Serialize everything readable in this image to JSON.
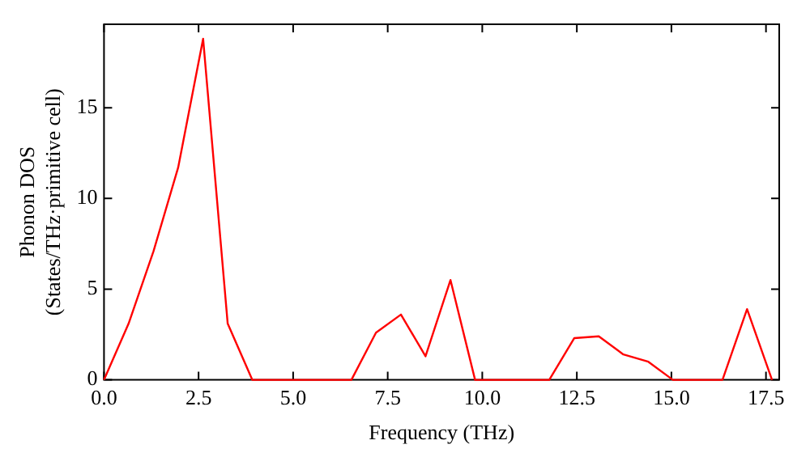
{
  "chart_data": {
    "type": "line",
    "xlabel": "Frequency (THz)",
    "ylabel": "Phonon DOS\n(States/THz·primitive cell)",
    "x": [
      0,
      0.65,
      1.31,
      1.96,
      2.62,
      3.27,
      3.92,
      4.58,
      5.23,
      5.89,
      6.54,
      7.19,
      7.85,
      8.5,
      9.16,
      9.81,
      10.46,
      11.12,
      11.77,
      12.43,
      13.08,
      13.73,
      14.39,
      15.04,
      15.7,
      16.35,
      17.0,
      17.66
    ],
    "series": [
      {
        "color": "#ff0000",
        "values": [
          0,
          3.1,
          7.1,
          11.7,
          18.8,
          3.1,
          0,
          0,
          0,
          0,
          0,
          2.6,
          3.6,
          1.3,
          5.5,
          0,
          0,
          0,
          0,
          2.3,
          2.4,
          1.4,
          1.0,
          0,
          0,
          0,
          3.9,
          0
        ]
      }
    ],
    "xlim": [
      0,
      17.85
    ],
    "ylim": [
      0,
      19.6
    ],
    "xticks": [
      {
        "value": 0,
        "label": "0.0"
      },
      2.5,
      {
        "value": 5,
        "label": "5.0"
      },
      7.5,
      {
        "value": 10,
        "label": "10.0"
      },
      12.5,
      {
        "value": 15,
        "label": "15.0"
      },
      17.5
    ],
    "yticks": [
      0,
      5,
      10,
      15
    ],
    "grid": false,
    "legend": false,
    "marker": "none",
    "line_style": "solid"
  }
}
